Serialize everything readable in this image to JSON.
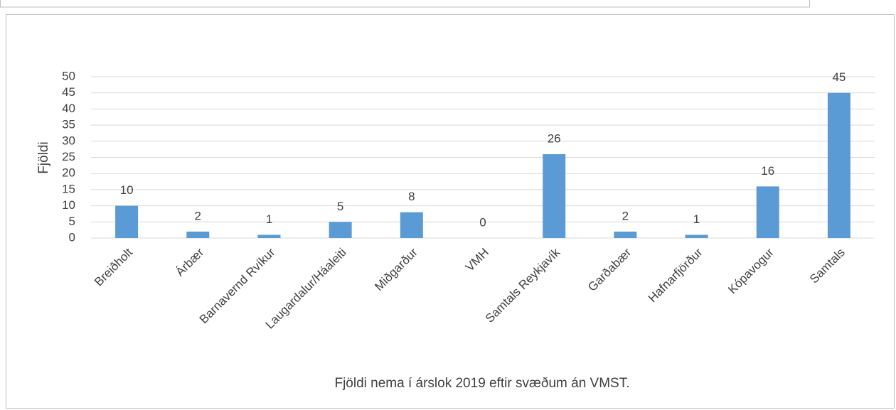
{
  "chart_data": {
    "type": "bar",
    "title": "Fjöldi nema í árslok 2019 eftir svæðum án VMST.",
    "y_label": "Fjöldi",
    "categories": [
      "Breiðholt",
      "Árbær",
      "Barnavernd Rvíkur",
      "Laugardalur/Háaleiti",
      "Miðgarður",
      "VMH",
      "Samtals Reykjavík",
      "Garðabær",
      "Hafnarfjörður",
      "Kópavogur",
      "Samtals"
    ],
    "values": [
      10,
      2,
      1,
      5,
      8,
      0,
      26,
      2,
      1,
      16,
      45
    ],
    "color": "#5b9bd5",
    "ylim": [
      0,
      50
    ],
    "yticks": [
      0,
      5,
      10,
      15,
      20,
      25,
      30,
      35,
      40,
      45,
      50
    ],
    "grid": true
  }
}
